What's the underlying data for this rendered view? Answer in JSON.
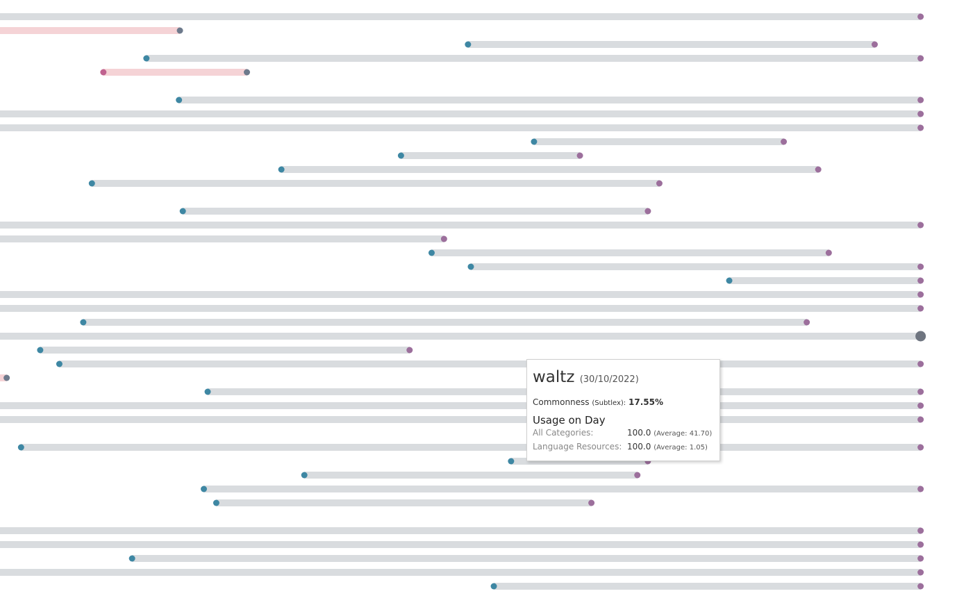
{
  "colors": {
    "track": "#d9dcdf",
    "track_highlight": "#f5d3d6",
    "start_dot": "#3e87a3",
    "end_dot": "#9c6f9c",
    "end_dot_dark": "#6d7a8c",
    "start_dot_pink": "#c0628f",
    "selected_dot": "#6f7580"
  },
  "chart_data": {
    "type": "range-dot",
    "x_axis_visible": false,
    "rows": [
      {
        "start": 0.0,
        "end": 0.962,
        "style": "normal"
      },
      {
        "start": 0.0,
        "end": 0.188,
        "style": "highlight"
      },
      {
        "start": 0.489,
        "end": 0.914,
        "style": "normal"
      },
      {
        "start": 0.153,
        "end": 0.962,
        "style": "normal"
      },
      {
        "start": 0.108,
        "end": 0.258,
        "style": "highlight-both"
      },
      null,
      {
        "start": 0.187,
        "end": 0.962,
        "style": "normal"
      },
      {
        "start": 0.0,
        "end": 0.962,
        "style": "normal"
      },
      {
        "start": 0.0,
        "end": 0.962,
        "style": "normal"
      },
      {
        "start": 0.558,
        "end": 0.819,
        "style": "normal"
      },
      {
        "start": 0.419,
        "end": 0.606,
        "style": "normal"
      },
      {
        "start": 0.294,
        "end": 0.855,
        "style": "normal"
      },
      {
        "start": 0.096,
        "end": 0.689,
        "style": "normal"
      },
      null,
      {
        "start": 0.191,
        "end": 0.677,
        "style": "normal"
      },
      {
        "start": 0.0,
        "end": 0.962,
        "style": "normal"
      },
      {
        "start": 0.0,
        "end": 0.464,
        "style": "normal"
      },
      {
        "start": 0.451,
        "end": 0.866,
        "style": "normal"
      },
      {
        "start": 0.492,
        "end": 0.962,
        "style": "normal"
      },
      {
        "start": 0.762,
        "end": 0.962,
        "style": "normal"
      },
      {
        "start": 0.0,
        "end": 0.962,
        "style": "normal"
      },
      {
        "start": 0.0,
        "end": 0.962,
        "style": "normal"
      },
      {
        "start": 0.087,
        "end": 0.843,
        "style": "normal"
      },
      {
        "start": 0.0,
        "end": 0.962,
        "style": "selected"
      },
      {
        "start": 0.042,
        "end": 0.428,
        "style": "normal"
      },
      {
        "start": 0.062,
        "end": 0.962,
        "style": "normal"
      },
      {
        "start": 0.0,
        "end": 0.007,
        "style": "highlight"
      },
      {
        "start": 0.217,
        "end": 0.962,
        "style": "normal"
      },
      {
        "start": 0.0,
        "end": 0.962,
        "style": "normal"
      },
      {
        "start": 0.0,
        "end": 0.962,
        "style": "normal"
      },
      null,
      {
        "start": 0.022,
        "end": 0.962,
        "style": "normal"
      },
      {
        "start": 0.534,
        "end": 0.677,
        "style": "normal"
      },
      {
        "start": 0.318,
        "end": 0.666,
        "style": "normal"
      },
      {
        "start": 0.213,
        "end": 0.962,
        "style": "normal"
      },
      {
        "start": 0.226,
        "end": 0.618,
        "style": "normal"
      },
      null,
      {
        "start": 0.0,
        "end": 0.962,
        "style": "normal"
      },
      {
        "start": 0.0,
        "end": 0.962,
        "style": "normal"
      },
      {
        "start": 0.138,
        "end": 0.962,
        "style": "normal"
      },
      {
        "start": 0.0,
        "end": 0.962,
        "style": "normal"
      },
      {
        "start": 0.516,
        "end": 0.962,
        "style": "normal"
      }
    ]
  },
  "tooltip": {
    "word": "waltz",
    "date": "(30/10/2022)",
    "commonness_label": "Commonness",
    "commonness_source": "(Subtlex):",
    "commonness_value": "17.55%",
    "usage_heading": "Usage on Day",
    "rows": [
      {
        "label": "All Categories:",
        "value": "100.0",
        "average": "(Average: 41.70)"
      },
      {
        "label": "Language Resources:",
        "value": "100.0",
        "average": "(Average: 1.05)"
      }
    ]
  }
}
